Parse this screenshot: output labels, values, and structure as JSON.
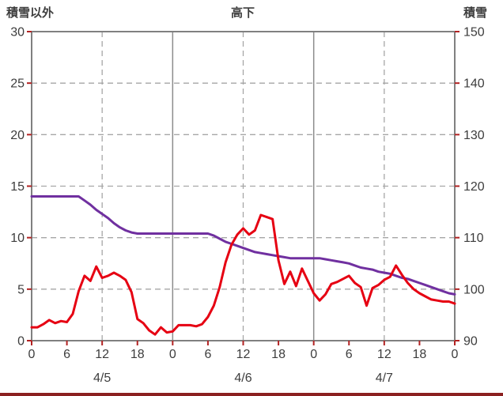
{
  "header": {
    "left_axis_title": "積雪以外",
    "station_title": "高下",
    "right_axis_title": "積雪"
  },
  "colors": {
    "red_series": "#e60012",
    "purple_series": "#7030a0",
    "grid": "#a6a6a6",
    "grid_solid": "#8c8c8c",
    "frame": "#808080",
    "tick": "#b22222",
    "text": "#3d3d3d",
    "bottom_bar": "#8b2020"
  },
  "chart_data": {
    "type": "line",
    "title": "高下",
    "x_hours_total": 72,
    "x_ticks": {
      "interval": 6,
      "labels": [
        "0",
        "6",
        "12",
        "18",
        "0",
        "6",
        "12",
        "18",
        "0",
        "6",
        "12",
        "18",
        "0"
      ]
    },
    "day_labels": [
      {
        "label": "4/5",
        "hour": 12
      },
      {
        "label": "4/6",
        "hour": 36
      },
      {
        "label": "4/7",
        "hour": 60
      }
    ],
    "left_axis": {
      "title": "積雪以外",
      "min": 0,
      "max": 30,
      "tick_step": 5,
      "ticks": [
        0,
        5,
        10,
        15,
        20,
        25,
        30
      ]
    },
    "right_axis": {
      "title": "積雪",
      "min": 90,
      "max": 150,
      "tick_step": 10,
      "ticks": [
        90,
        100,
        110,
        120,
        130,
        140,
        150
      ]
    },
    "gridlines": {
      "horizontal_dashed_at_left": [
        5,
        10,
        15,
        20,
        25
      ],
      "vertical_dashed_at_hours": [
        12,
        36,
        60
      ],
      "vertical_solid_at_hours": [
        24,
        48
      ]
    },
    "series": [
      {
        "id": "snow-depth",
        "name": "積雪",
        "axis": "right",
        "color": "#7030a0",
        "values": [
          118,
          118,
          118,
          118,
          118,
          118,
          118,
          118,
          118,
          117.2,
          116.4,
          115.4,
          114.6,
          113.8,
          112.8,
          112,
          111.4,
          111,
          110.8,
          110.8,
          110.8,
          110.8,
          110.8,
          110.8,
          110.8,
          110.8,
          110.8,
          110.8,
          110.8,
          110.8,
          110.8,
          110.4,
          109.8,
          109.2,
          108.8,
          108.4,
          108,
          107.6,
          107.2,
          107,
          106.8,
          106.6,
          106.4,
          106.2,
          106,
          106,
          106,
          106,
          106,
          106,
          105.8,
          105.6,
          105.4,
          105.2,
          105,
          104.6,
          104.2,
          104,
          103.8,
          103.4,
          103.2,
          103,
          102.6,
          102.2,
          102,
          101.6,
          101.2,
          100.8,
          100.4,
          100,
          99.6,
          99.2,
          99
        ]
      },
      {
        "id": "non-snow",
        "name": "積雪以外",
        "axis": "left",
        "color": "#e60012",
        "values": [
          1.3,
          1.3,
          1.6,
          2.0,
          1.7,
          1.9,
          1.8,
          2.6,
          4.8,
          6.3,
          5.8,
          7.2,
          6.1,
          6.3,
          6.6,
          6.3,
          5.9,
          4.7,
          2.1,
          1.7,
          1.0,
          0.6,
          1.3,
          0.8,
          0.9,
          1.5,
          1.5,
          1.5,
          1.4,
          1.6,
          2.3,
          3.4,
          5.2,
          7.6,
          9.3,
          10.3,
          10.9,
          10.3,
          10.7,
          12.2,
          12.0,
          11.8,
          7.8,
          5.5,
          6.7,
          5.3,
          7.0,
          5.8,
          4.6,
          3.9,
          4.5,
          5.5,
          5.7,
          6.0,
          6.3,
          5.6,
          5.2,
          3.4,
          5.1,
          5.4,
          5.9,
          6.2,
          7.3,
          6.4,
          5.6,
          5.0,
          4.6,
          4.3,
          4.0,
          3.9,
          3.8,
          3.8,
          3.6
        ]
      }
    ]
  }
}
